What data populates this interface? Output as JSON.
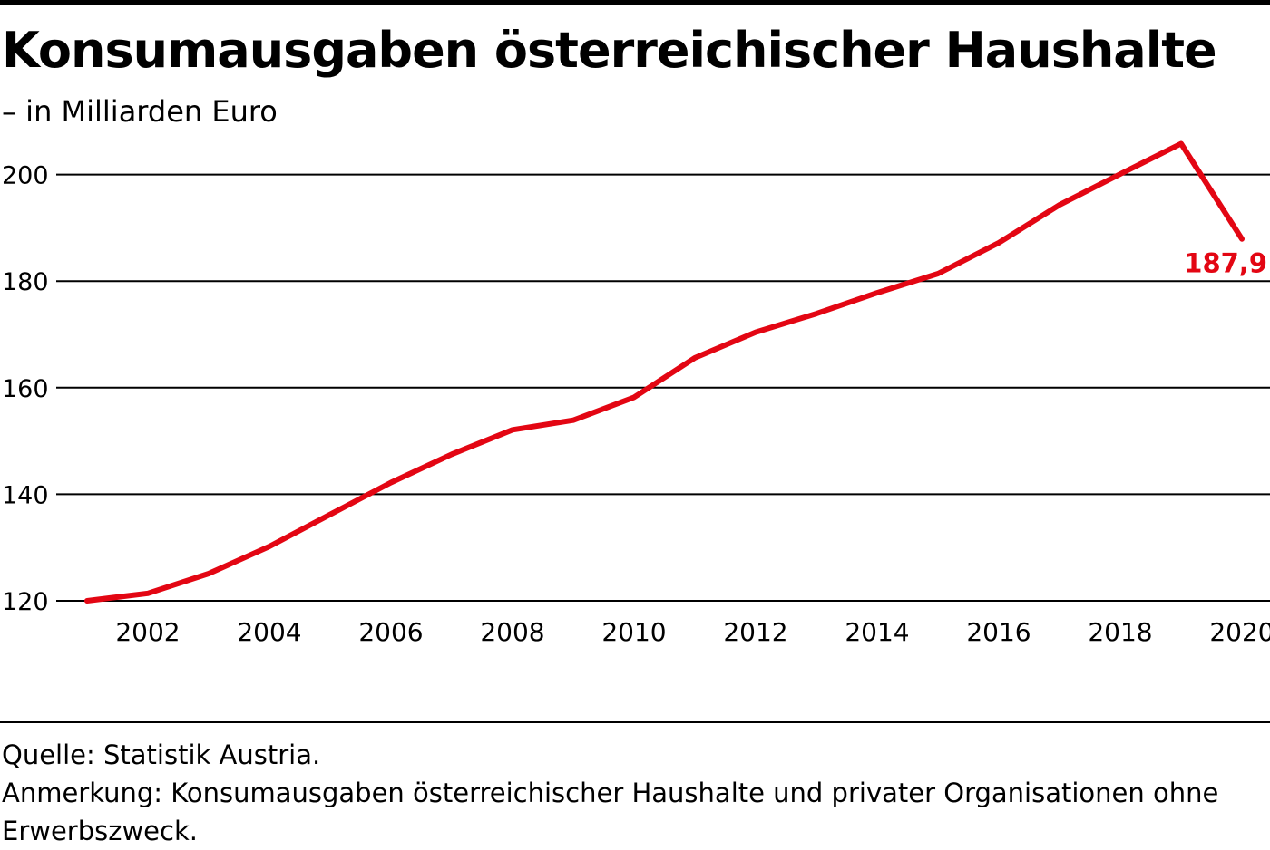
{
  "header": {
    "title": "Konsumausgaben österreichischer Haushalte",
    "subtitle": "– in Milliarden Euro"
  },
  "footer": {
    "source": "Quelle: Statistik Austria.",
    "note": "Anmerkung: Konsumausgaben österreichischer Haushalte und privater Organisationen ohne Erwerbszweck."
  },
  "colors": {
    "line": "#e30613",
    "grid": "#000000",
    "text": "#000000"
  },
  "chart_data": {
    "type": "line",
    "title": "Konsumausgaben österreichischer Haushalte",
    "subtitle": "– in Milliarden Euro",
    "xlabel": "",
    "ylabel": "",
    "x": [
      2001,
      2002,
      2003,
      2004,
      2005,
      2006,
      2007,
      2008,
      2009,
      2010,
      2011,
      2012,
      2013,
      2014,
      2015,
      2016,
      2017,
      2018,
      2019,
      2020
    ],
    "series": [
      {
        "name": "",
        "values": [
          120.0,
          121.4,
          125.1,
          130.2,
          136.2,
          142.2,
          147.5,
          152.1,
          153.9,
          158.2,
          165.6,
          170.4,
          173.9,
          177.8,
          181.4,
          187.2,
          194.3,
          200.1,
          205.8,
          187.9
        ]
      }
    ],
    "xticks": [
      "2002",
      "2004",
      "2006",
      "2008",
      "2010",
      "2012",
      "2014",
      "2016",
      "2018",
      "2020"
    ],
    "yticks": [
      "120",
      "140",
      "160",
      "180",
      "200"
    ],
    "ylim": [
      120,
      206
    ],
    "grid": "horizontal",
    "legend": "none",
    "annotations": [
      {
        "x": 2020,
        "text": "187,9"
      }
    ]
  }
}
